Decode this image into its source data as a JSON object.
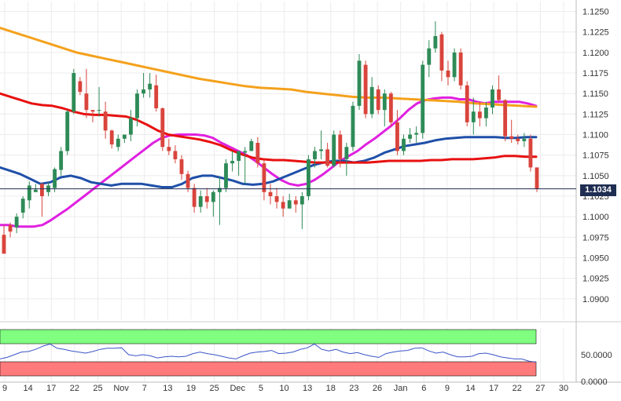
{
  "chart_data": {
    "type": "candlestick",
    "main": {
      "ylim": [
        1.0875,
        1.1262
      ],
      "y_ticks": [
        "1.1250",
        "1.1225",
        "1.1200",
        "1.1175",
        "1.1150",
        "1.1125",
        "1.1100",
        "1.1075",
        "1.1050",
        "1.1025",
        "1.1000",
        "1.0975",
        "1.0950",
        "1.0925",
        "1.0900"
      ],
      "x_ticks": [
        "9",
        "14",
        "17",
        "22",
        "25",
        "Nov",
        "7",
        "13",
        "19",
        "25",
        "Dec",
        "5",
        "10",
        "13",
        "18",
        "23",
        "26",
        "Jan",
        "6",
        "9",
        "14",
        "17",
        "22",
        "27",
        "30"
      ],
      "current_price": "1.1034",
      "candles": [
        [
          1.0978,
          1.099,
          1.0955,
          1.0955
        ],
        [
          1.099,
          1.0993,
          1.0975,
          1.0982
        ],
        [
          1.0987,
          1.1004,
          1.098,
          1.1
        ],
        [
          1.1005,
          1.1025,
          1.0998,
          1.1022
        ],
        [
          1.102,
          1.1043,
          1.101,
          1.1038
        ],
        [
          1.103,
          1.104,
          1.103,
          1.1033
        ],
        [
          1.104,
          1.1041,
          1.1,
          1.1025
        ],
        [
          1.103,
          1.1042,
          1.1025,
          1.1038
        ],
        [
          1.1035,
          1.106,
          1.103,
          1.1058
        ],
        [
          1.1057,
          1.1085,
          1.105,
          1.108
        ],
        [
          1.108,
          1.113,
          1.1075,
          1.1128
        ],
        [
          1.1128,
          1.118,
          1.1125,
          1.1175
        ],
        [
          1.1165,
          1.117,
          1.1148,
          1.1152
        ],
        [
          1.115,
          1.118,
          1.112,
          1.113
        ],
        [
          1.113,
          1.113,
          1.1115,
          1.1128
        ],
        [
          1.113,
          1.1158,
          1.1122,
          1.113
        ],
        [
          1.1128,
          1.114,
          1.1095,
          1.1105
        ],
        [
          1.1105,
          1.1106,
          1.1083,
          1.1088
        ],
        [
          1.1085,
          1.11,
          1.108,
          1.1095
        ],
        [
          1.1095,
          1.11,
          1.109,
          1.11
        ],
        [
          1.11,
          1.113,
          1.1092,
          1.112
        ],
        [
          1.112,
          1.1155,
          1.111,
          1.115
        ],
        [
          1.115,
          1.1175,
          1.1145,
          1.1155
        ],
        [
          1.1155,
          1.1175,
          1.1145,
          1.1162
        ],
        [
          1.116,
          1.1173,
          1.1128,
          1.1132
        ],
        [
          1.1132,
          1.1133,
          1.108,
          1.1085
        ],
        [
          1.1085,
          1.1095,
          1.1075,
          1.108
        ],
        [
          1.108,
          1.1087,
          1.1065,
          1.107
        ],
        [
          1.107,
          1.1075,
          1.1045,
          1.1052
        ],
        [
          1.1052,
          1.1056,
          1.103,
          1.1035
        ],
        [
          1.1035,
          1.104,
          1.1005,
          1.1012
        ],
        [
          1.1012,
          1.1032,
          1.1005,
          1.1025
        ],
        [
          1.1025,
          1.1035,
          1.101,
          1.1018
        ],
        [
          1.1018,
          1.1032,
          1.1,
          1.103
        ],
        [
          1.103,
          1.1048,
          1.099,
          1.1035
        ],
        [
          1.1035,
          1.107,
          1.103,
          1.1065
        ],
        [
          1.1065,
          1.108,
          1.1055,
          1.1068
        ],
        [
          1.1068,
          1.108,
          1.105,
          1.108
        ],
        [
          1.1078,
          1.1085,
          1.104,
          1.108
        ],
        [
          1.108,
          1.1095,
          1.108,
          1.1092
        ],
        [
          1.109,
          1.1097,
          1.106,
          1.1065
        ],
        [
          1.1065,
          1.107,
          1.102,
          1.103
        ],
        [
          1.103,
          1.104,
          1.1015,
          1.1025
        ],
        [
          1.1025,
          1.1035,
          1.101,
          1.1018
        ],
        [
          1.1018,
          1.1025,
          1.1,
          1.101
        ],
        [
          1.101,
          1.1028,
          1.101,
          1.102
        ],
        [
          1.102,
          1.1025,
          1.1005,
          1.1015
        ],
        [
          1.1015,
          1.103,
          1.0985,
          1.1025
        ],
        [
          1.1025,
          1.1075,
          1.102,
          1.107
        ],
        [
          1.107,
          1.1085,
          1.106,
          1.108
        ],
        [
          1.108,
          1.1105,
          1.107,
          1.1082
        ],
        [
          1.1082,
          1.109,
          1.106,
          1.1062
        ],
        [
          1.1062,
          1.1105,
          1.106,
          1.11
        ],
        [
          1.11,
          1.1105,
          1.106,
          1.107
        ],
        [
          1.107,
          1.109,
          1.105,
          1.1085
        ],
        [
          1.1085,
          1.114,
          1.108,
          1.1135
        ],
        [
          1.1135,
          1.1198,
          1.113,
          1.119
        ],
        [
          1.1185,
          1.119,
          1.112,
          1.1125
        ],
        [
          1.1125,
          1.117,
          1.112,
          1.1158
        ],
        [
          1.1155,
          1.116,
          1.1125,
          1.113
        ],
        [
          1.113,
          1.1155,
          1.111,
          1.115
        ],
        [
          1.115,
          1.1152,
          1.111,
          1.1115
        ],
        [
          1.1115,
          1.113,
          1.1075,
          1.108
        ],
        [
          1.108,
          1.11,
          1.1075,
          1.1095
        ],
        [
          1.1095,
          1.1108,
          1.109,
          1.11
        ],
        [
          1.11,
          1.111,
          1.109,
          1.1102
        ],
        [
          1.1102,
          1.119,
          1.1095,
          1.1185
        ],
        [
          1.1185,
          1.1215,
          1.117,
          1.1205
        ],
        [
          1.1205,
          1.1238,
          1.12,
          1.122
        ],
        [
          1.1222,
          1.1225,
          1.1165,
          1.1178
        ],
        [
          1.1178,
          1.119,
          1.116,
          1.117
        ],
        [
          1.117,
          1.1205,
          1.1165,
          1.12
        ],
        [
          1.12,
          1.1205,
          1.1155,
          1.116
        ],
        [
          1.116,
          1.1165,
          1.111,
          1.1115
        ],
        [
          1.1115,
          1.1145,
          1.11,
          1.1128
        ],
        [
          1.1128,
          1.114,
          1.111,
          1.112
        ],
        [
          1.112,
          1.114,
          1.111,
          1.1133
        ],
        [
          1.1133,
          1.116,
          1.1125,
          1.1155
        ],
        [
          1.1155,
          1.1172,
          1.114,
          1.1142
        ],
        [
          1.1142,
          1.1143,
          1.1092,
          1.1098
        ],
        [
          1.1098,
          1.1118,
          1.109,
          1.1095
        ],
        [
          1.1095,
          1.11,
          1.1088,
          1.1092
        ],
        [
          1.1092,
          1.1102,
          1.1085,
          1.1095
        ],
        [
          1.1095,
          1.11,
          1.1055,
          1.106
        ],
        [
          1.106,
          1.106,
          1.103,
          1.1034
        ]
      ],
      "moving_averages": [
        {
          "color": "#e020e0",
          "values": [
            1.099,
            1.099,
            1.0988,
            1.0988,
            1.0988,
            1.099,
            1.0996,
            1.1003,
            1.101,
            1.1018,
            1.1026,
            1.1034,
            1.1042,
            1.105,
            1.1058,
            1.1066,
            1.1074,
            1.1082,
            1.109,
            1.1096,
            1.1099,
            1.11,
            1.11,
            1.11,
            1.1099,
            1.1096,
            1.109,
            1.1085,
            1.108,
            1.1075,
            1.1068,
            1.106,
            1.1052,
            1.1045,
            1.104,
            1.1038,
            1.104,
            1.1045,
            1.1052,
            1.106,
            1.1068,
            1.1074,
            1.108,
            1.1088,
            1.1095,
            1.1103,
            1.1111,
            1.112,
            1.113,
            1.1138,
            1.1142,
            1.1144,
            1.1145,
            1.1145,
            1.1143,
            1.1143,
            1.114,
            1.1138,
            1.114,
            1.114,
            1.114,
            1.114,
            1.1138,
            1.1135
          ]
        },
        {
          "color": "#1f4fa8",
          "values": [
            1.106,
            1.1056,
            1.1052,
            1.1046,
            1.104,
            1.1042,
            1.1048,
            1.105,
            1.1047,
            1.1042,
            1.104,
            1.1038,
            1.104,
            1.104,
            1.104,
            1.1038,
            1.1036,
            1.1036,
            1.104,
            1.1047,
            1.105,
            1.105,
            1.1047,
            1.1044,
            1.104,
            1.1039,
            1.104,
            1.1043,
            1.1048,
            1.1053,
            1.1058,
            1.1063,
            1.1066,
            1.1068,
            1.1068,
            1.1066,
            1.1068,
            1.1072,
            1.1078,
            1.1082,
            1.1086,
            1.1088,
            1.109,
            1.1093,
            1.1095,
            1.1096,
            1.1097,
            1.1097,
            1.1097,
            1.1097,
            1.1096,
            1.1096,
            1.1097,
            1.1097
          ]
        },
        {
          "color": "#e81010",
          "values": [
            1.115,
            1.1146,
            1.1142,
            1.1138,
            1.1136,
            1.1135,
            1.1132,
            1.1128,
            1.1125,
            1.1124,
            1.1124,
            1.1123,
            1.1122,
            1.1118,
            1.1112,
            1.1105,
            1.11,
            1.1098,
            1.1096,
            1.1094,
            1.1091,
            1.1087,
            1.1081,
            1.1076,
            1.1072,
            1.107,
            1.1069,
            1.1069,
            1.1068,
            1.1067,
            1.1066,
            1.1066,
            1.1066,
            1.1066,
            1.1066,
            1.1066,
            1.1067,
            1.1068,
            1.1068,
            1.1068,
            1.1068,
            1.1069,
            1.1069,
            1.107,
            1.107,
            1.107,
            1.1071,
            1.1072,
            1.1074,
            1.1074,
            1.1073,
            1.1073
          ]
        },
        {
          "color": "#f4a11c",
          "values": [
            1.123,
            1.1224,
            1.1218,
            1.1212,
            1.1206,
            1.12,
            1.1196,
            1.1192,
            1.1188,
            1.1184,
            1.118,
            1.1176,
            1.1172,
            1.1168,
            1.1165,
            1.1162,
            1.1159,
            1.1157,
            1.1156,
            1.1155,
            1.1152,
            1.115,
            1.1148,
            1.1146,
            1.1145,
            1.1145,
            1.1144,
            1.1143,
            1.1142,
            1.1141,
            1.114,
            1.1138,
            1.1137,
            1.1136,
            1.1135,
            1.1134
          ]
        }
      ]
    },
    "indicator": {
      "ylim": [
        0,
        100
      ],
      "y_ticks": [
        "50.0000",
        "0.0000"
      ],
      "overbought_color": "#80ff80",
      "oversold_color": "#ff7a7a",
      "line_color": "#3a55c8",
      "values": [
        42,
        45,
        50,
        55,
        56,
        60,
        66,
        70,
        62,
        60,
        57,
        55,
        53,
        56,
        60,
        62,
        62,
        63,
        50,
        48,
        50,
        48,
        44,
        46,
        47,
        46,
        47,
        52,
        55,
        52,
        50,
        47,
        44,
        42,
        48,
        53,
        55,
        56,
        58,
        52,
        53,
        55,
        60,
        63,
        70,
        60,
        57,
        60,
        55,
        52,
        54,
        50,
        47,
        45,
        52,
        55,
        57,
        58,
        62,
        63,
        57,
        53,
        55,
        50,
        46,
        46,
        47,
        52,
        53,
        50,
        46,
        44,
        42,
        42,
        38,
        36
      ]
    }
  }
}
